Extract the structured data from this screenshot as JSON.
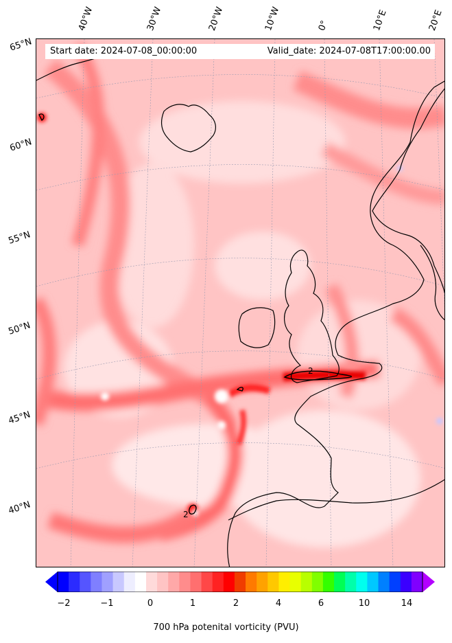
{
  "header": {
    "start_date": "Start date: 2024-07-08_00:00:00",
    "valid_date": "Valid_date: 2024-07-08T17:00:00.00"
  },
  "longitude_labels": [
    "40°W",
    "30°W",
    "20°W",
    "10°W",
    "0°",
    "10°E",
    "20°E"
  ],
  "latitude_labels": [
    "65°N",
    "60°N",
    "55°N",
    "50°N",
    "45°N",
    "40°N"
  ],
  "contour_labels": [
    "2",
    "2"
  ],
  "colorbar": {
    "title": "700 hPa potenital vorticity (PVU)",
    "tick_labels": [
      "−2",
      "−1",
      "0",
      "1",
      "2",
      "4",
      "6",
      "10",
      "14"
    ],
    "colors": [
      "#0000ff",
      "#2b2bff",
      "#5555ff",
      "#7f7fff",
      "#a0a0ff",
      "#c8c8ff",
      "#eeeeff",
      "#ffffff",
      "#ffdada",
      "#ffc4c4",
      "#ffa8a8",
      "#ff8c8c",
      "#ff6f6f",
      "#ff4747",
      "#ff2222",
      "#ff0000",
      "#f03c00",
      "#ff7a00",
      "#ffa200",
      "#ffc800",
      "#ffee00",
      "#e8ff00",
      "#b8ff00",
      "#80ff00",
      "#33ff00",
      "#00ff55",
      "#00ffaa",
      "#00ffee",
      "#00c8ff",
      "#0080ff",
      "#0040ff",
      "#3a00ff",
      "#8000ff"
    ],
    "under_color": "#0000ff",
    "over_color": "#b300ff"
  }
}
